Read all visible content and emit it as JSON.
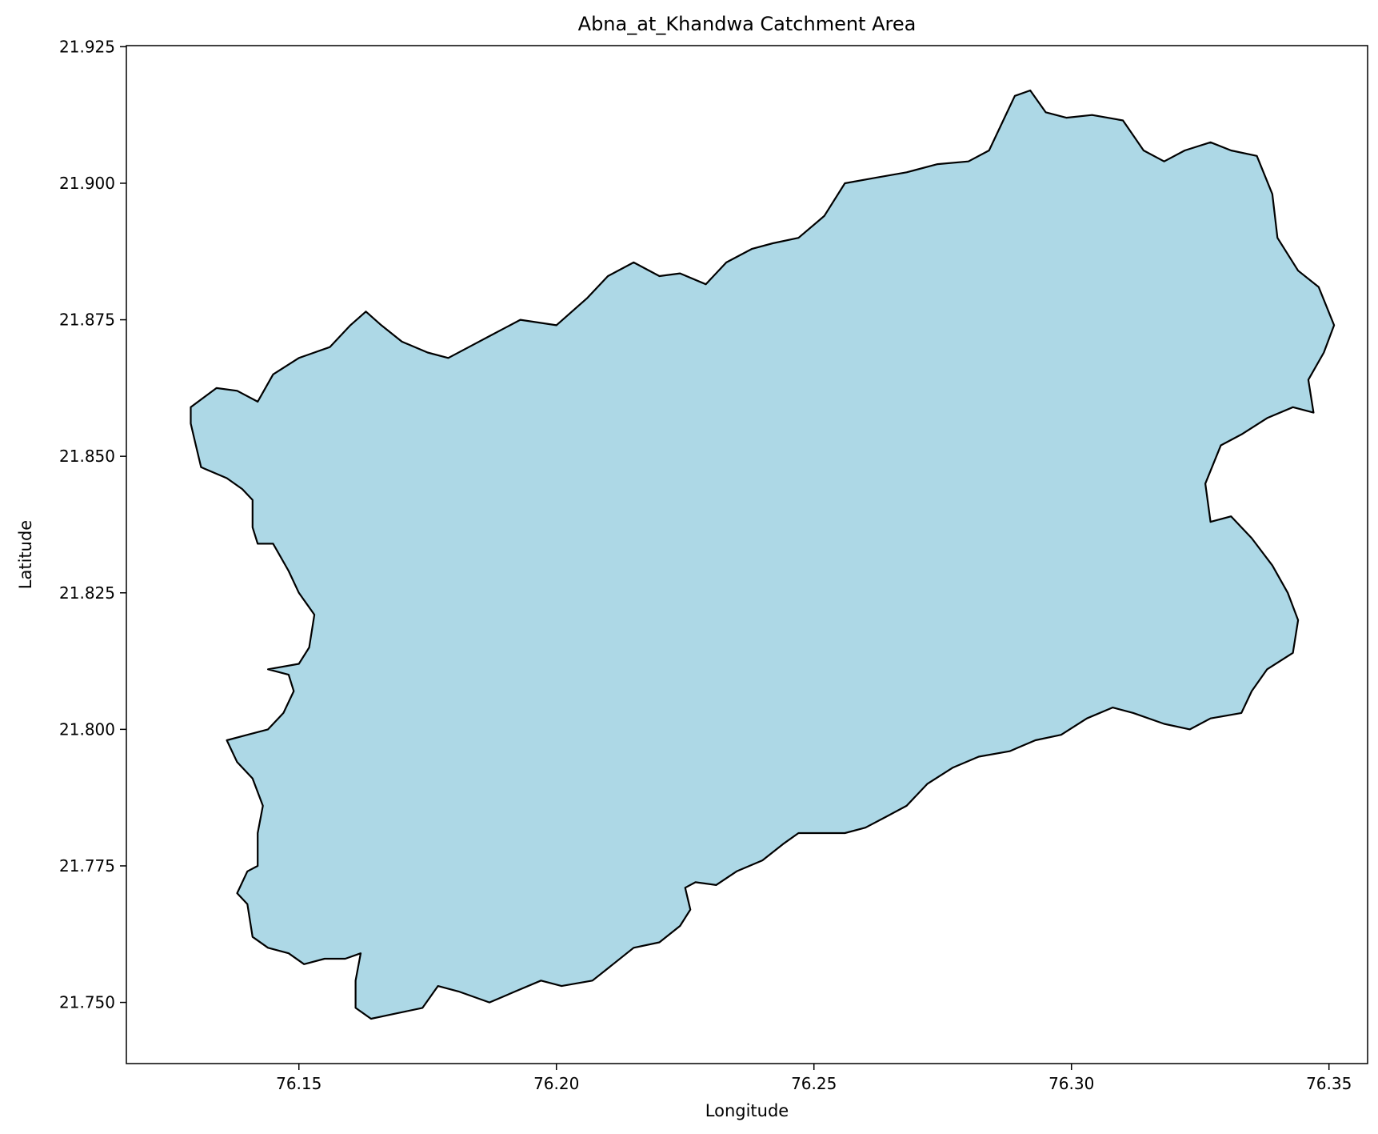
{
  "chart_data": {
    "type": "map",
    "title": "Abna_at_Khandwa Catchment Area",
    "xlabel": "Longitude",
    "ylabel": "Latitude",
    "xlim": [
      76.1165,
      76.3575
    ],
    "ylim": [
      21.7388,
      21.9252
    ],
    "xticks": [
      {
        "value": 76.15,
        "label": "76.15"
      },
      {
        "value": 76.2,
        "label": "76.20"
      },
      {
        "value": 76.25,
        "label": "76.25"
      },
      {
        "value": 76.3,
        "label": "76.30"
      },
      {
        "value": 76.35,
        "label": "76.35"
      }
    ],
    "yticks": [
      {
        "value": 21.75,
        "label": "21.750"
      },
      {
        "value": 21.775,
        "label": "21.775"
      },
      {
        "value": 21.8,
        "label": "21.800"
      },
      {
        "value": 21.825,
        "label": "21.825"
      },
      {
        "value": 21.85,
        "label": "21.850"
      },
      {
        "value": 21.875,
        "label": "21.875"
      },
      {
        "value": 21.9,
        "label": "21.900"
      },
      {
        "value": 21.925,
        "label": "21.925"
      }
    ],
    "grid": false,
    "fill_color": "#add8e6",
    "edge_color": "#000000",
    "boundary": [
      [
        76.129,
        21.859
      ],
      [
        76.134,
        21.8625
      ],
      [
        76.138,
        21.862
      ],
      [
        76.142,
        21.86
      ],
      [
        76.145,
        21.865
      ],
      [
        76.15,
        21.868
      ],
      [
        76.156,
        21.87
      ],
      [
        76.16,
        21.874
      ],
      [
        76.163,
        21.8765
      ],
      [
        76.166,
        21.874
      ],
      [
        76.17,
        21.871
      ],
      [
        76.175,
        21.869
      ],
      [
        76.179,
        21.868
      ],
      [
        76.183,
        21.87
      ],
      [
        76.187,
        21.872
      ],
      [
        76.193,
        21.875
      ],
      [
        76.2,
        21.874
      ],
      [
        76.206,
        21.879
      ],
      [
        76.21,
        21.883
      ],
      [
        76.215,
        21.8855
      ],
      [
        76.22,
        21.883
      ],
      [
        76.224,
        21.8835
      ],
      [
        76.229,
        21.8815
      ],
      [
        76.233,
        21.8855
      ],
      [
        76.238,
        21.888
      ],
      [
        76.242,
        21.889
      ],
      [
        76.247,
        21.89
      ],
      [
        76.252,
        21.894
      ],
      [
        76.256,
        21.9
      ],
      [
        76.262,
        21.901
      ],
      [
        76.268,
        21.902
      ],
      [
        76.274,
        21.9035
      ],
      [
        76.28,
        21.904
      ],
      [
        76.284,
        21.906
      ],
      [
        76.287,
        21.912
      ],
      [
        76.289,
        21.916
      ],
      [
        76.292,
        21.917
      ],
      [
        76.295,
        21.913
      ],
      [
        76.299,
        21.912
      ],
      [
        76.304,
        21.9125
      ],
      [
        76.31,
        21.9115
      ],
      [
        76.314,
        21.906
      ],
      [
        76.318,
        21.904
      ],
      [
        76.322,
        21.906
      ],
      [
        76.327,
        21.9075
      ],
      [
        76.331,
        21.906
      ],
      [
        76.336,
        21.905
      ],
      [
        76.339,
        21.898
      ],
      [
        76.34,
        21.89
      ],
      [
        76.344,
        21.884
      ],
      [
        76.348,
        21.881
      ],
      [
        76.351,
        21.874
      ],
      [
        76.349,
        21.869
      ],
      [
        76.346,
        21.864
      ],
      [
        76.347,
        21.858
      ],
      [
        76.343,
        21.859
      ],
      [
        76.338,
        21.857
      ],
      [
        76.333,
        21.854
      ],
      [
        76.329,
        21.852
      ],
      [
        76.326,
        21.845
      ],
      [
        76.327,
        21.838
      ],
      [
        76.331,
        21.839
      ],
      [
        76.335,
        21.835
      ],
      [
        76.339,
        21.83
      ],
      [
        76.342,
        21.825
      ],
      [
        76.344,
        21.82
      ],
      [
        76.343,
        21.814
      ],
      [
        76.338,
        21.811
      ],
      [
        76.335,
        21.807
      ],
      [
        76.333,
        21.803
      ],
      [
        76.327,
        21.802
      ],
      [
        76.323,
        21.8
      ],
      [
        76.318,
        21.801
      ],
      [
        76.312,
        21.803
      ],
      [
        76.308,
        21.804
      ],
      [
        76.303,
        21.802
      ],
      [
        76.298,
        21.799
      ],
      [
        76.293,
        21.798
      ],
      [
        76.288,
        21.796
      ],
      [
        76.282,
        21.795
      ],
      [
        76.277,
        21.793
      ],
      [
        76.272,
        21.79
      ],
      [
        76.268,
        21.786
      ],
      [
        76.264,
        21.784
      ],
      [
        76.26,
        21.782
      ],
      [
        76.256,
        21.781
      ],
      [
        76.252,
        21.781
      ],
      [
        76.247,
        21.781
      ],
      [
        76.244,
        21.779
      ],
      [
        76.24,
        21.776
      ],
      [
        76.235,
        21.774
      ],
      [
        76.231,
        21.7715
      ],
      [
        76.227,
        21.772
      ],
      [
        76.225,
        21.771
      ],
      [
        76.226,
        21.767
      ],
      [
        76.224,
        21.764
      ],
      [
        76.22,
        21.761
      ],
      [
        76.215,
        21.76
      ],
      [
        76.211,
        21.757
      ],
      [
        76.207,
        21.754
      ],
      [
        76.201,
        21.753
      ],
      [
        76.197,
        21.754
      ],
      [
        76.192,
        21.752
      ],
      [
        76.187,
        21.75
      ],
      [
        76.181,
        21.752
      ],
      [
        76.177,
        21.753
      ],
      [
        76.174,
        21.749
      ],
      [
        76.169,
        21.748
      ],
      [
        76.164,
        21.747
      ],
      [
        76.161,
        21.749
      ],
      [
        76.161,
        21.754
      ],
      [
        76.162,
        21.759
      ],
      [
        76.159,
        21.758
      ],
      [
        76.155,
        21.758
      ],
      [
        76.151,
        21.757
      ],
      [
        76.148,
        21.759
      ],
      [
        76.144,
        21.76
      ],
      [
        76.141,
        21.762
      ],
      [
        76.14,
        21.768
      ],
      [
        76.138,
        21.77
      ],
      [
        76.14,
        21.774
      ],
      [
        76.142,
        21.775
      ],
      [
        76.142,
        21.781
      ],
      [
        76.143,
        21.786
      ],
      [
        76.141,
        21.791
      ],
      [
        76.138,
        21.794
      ],
      [
        76.136,
        21.798
      ],
      [
        76.14,
        21.799
      ],
      [
        76.144,
        21.8
      ],
      [
        76.147,
        21.803
      ],
      [
        76.149,
        21.807
      ],
      [
        76.148,
        21.81
      ],
      [
        76.144,
        21.811
      ],
      [
        76.15,
        21.812
      ],
      [
        76.152,
        21.815
      ],
      [
        76.153,
        21.821
      ],
      [
        76.15,
        21.825
      ],
      [
        76.148,
        21.829
      ],
      [
        76.145,
        21.834
      ],
      [
        76.142,
        21.834
      ],
      [
        76.141,
        21.837
      ],
      [
        76.141,
        21.842
      ],
      [
        76.139,
        21.844
      ],
      [
        76.136,
        21.846
      ],
      [
        76.131,
        21.848
      ],
      [
        76.13,
        21.852
      ],
      [
        76.129,
        21.856
      ]
    ]
  }
}
